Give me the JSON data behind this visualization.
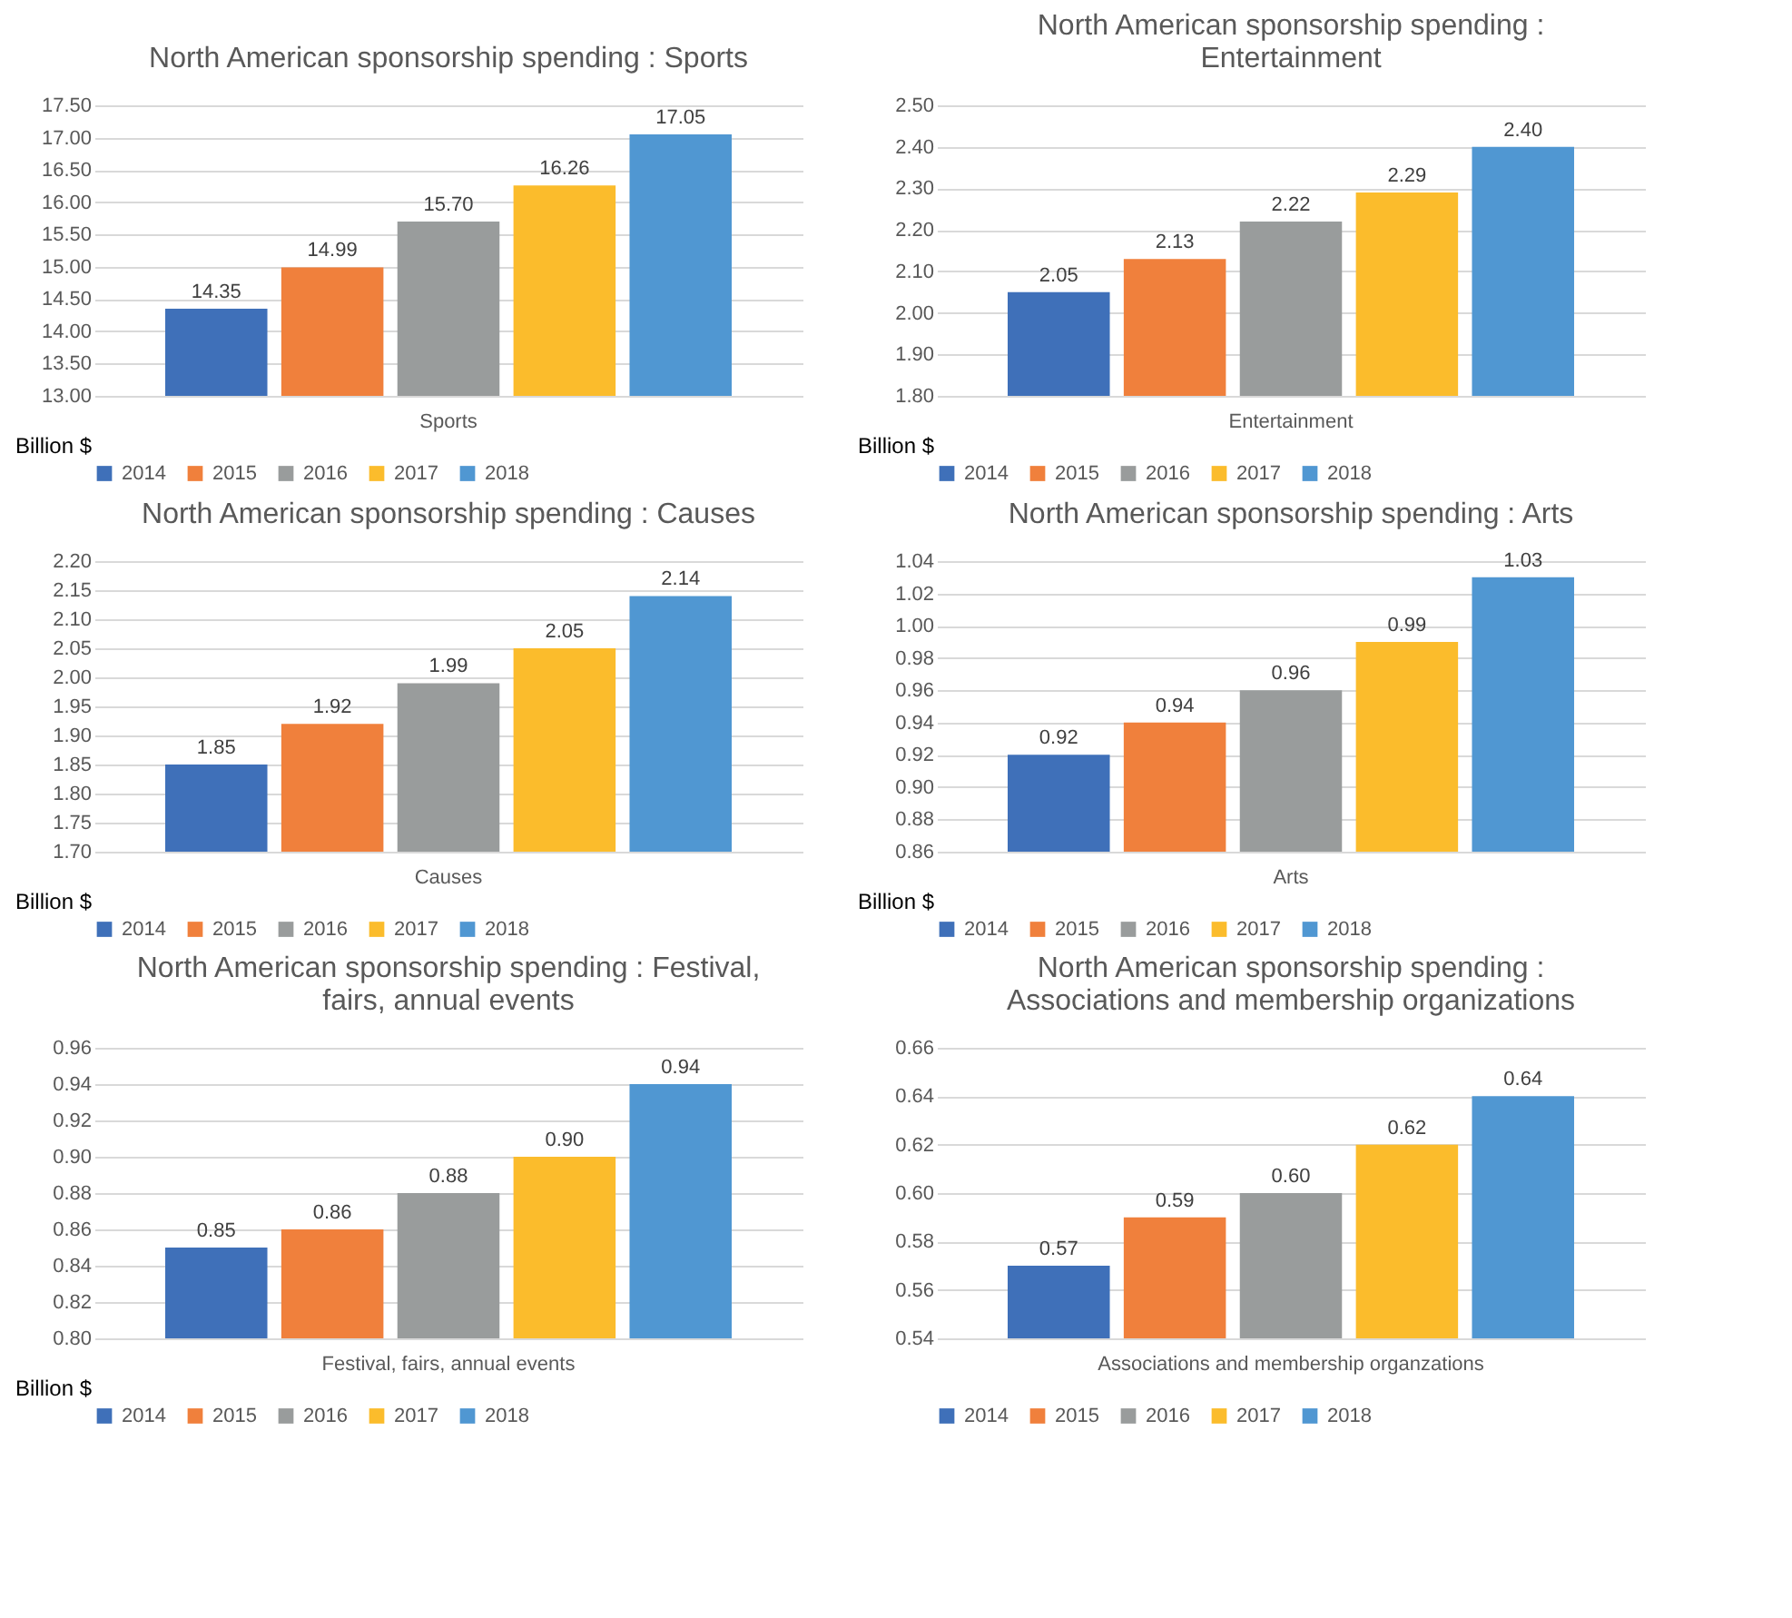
{
  "chart_data": [
    {
      "type": "bar",
      "title": "North American sponsorship spending : Sports",
      "categories": [
        "Sports"
      ],
      "ylabel": "Billion $",
      "grid": "y",
      "legend": "bottom",
      "ylim": [
        13,
        17.5
      ],
      "yticks": [
        {
          "value": 13,
          "label": "13.00"
        },
        {
          "value": 13.5,
          "label": "13.50"
        },
        {
          "value": 14,
          "label": "14.00"
        },
        {
          "value": 14.5,
          "label": "14.50"
        },
        {
          "value": 15,
          "label": "15.00"
        },
        {
          "value": 15.5,
          "label": "15.50"
        },
        {
          "value": 16,
          "label": "16.00"
        },
        {
          "value": 16.5,
          "label": "16.50"
        },
        {
          "value": 17,
          "label": "17.00"
        },
        {
          "value": 17.5,
          "label": "17.50"
        }
      ],
      "series": [
        {
          "name": "2014",
          "color": "#3f70b9",
          "values": [
            14.35
          ],
          "value_labels": [
            "14.35"
          ]
        },
        {
          "name": "2015",
          "color": "#f0803c",
          "values": [
            14.99
          ],
          "value_labels": [
            "14.99"
          ]
        },
        {
          "name": "2016",
          "color": "#999c9c",
          "values": [
            15.7
          ],
          "value_labels": [
            "15.70"
          ]
        },
        {
          "name": "2017",
          "color": "#fbbc2c",
          "values": [
            16.26
          ],
          "value_labels": [
            "16.26"
          ]
        },
        {
          "name": "2018",
          "color": "#5097d2",
          "values": [
            17.05
          ],
          "value_labels": [
            "17.05"
          ]
        }
      ]
    },
    {
      "type": "bar",
      "title": "North American sponsorship spending : Entertainment",
      "categories": [
        "Entertainment"
      ],
      "ylabel": "Billion $",
      "grid": "y",
      "legend": "bottom",
      "ylim": [
        1.8,
        2.5
      ],
      "yticks": [
        {
          "value": 1.8,
          "label": "1.80"
        },
        {
          "value": 1.9,
          "label": "1.90"
        },
        {
          "value": 2.0,
          "label": "2.00"
        },
        {
          "value": 2.1,
          "label": "2.10"
        },
        {
          "value": 2.2,
          "label": "2.20"
        },
        {
          "value": 2.3,
          "label": "2.30"
        },
        {
          "value": 2.4,
          "label": "2.40"
        },
        {
          "value": 2.5,
          "label": "2.50"
        }
      ],
      "series": [
        {
          "name": "2014",
          "color": "#3f70b9",
          "values": [
            2.05
          ],
          "value_labels": [
            "2.05"
          ]
        },
        {
          "name": "2015",
          "color": "#f0803c",
          "values": [
            2.13
          ],
          "value_labels": [
            "2.13"
          ]
        },
        {
          "name": "2016",
          "color": "#999c9c",
          "values": [
            2.22
          ],
          "value_labels": [
            "2.22"
          ]
        },
        {
          "name": "2017",
          "color": "#fbbc2c",
          "values": [
            2.29
          ],
          "value_labels": [
            "2.29"
          ]
        },
        {
          "name": "2018",
          "color": "#5097d2",
          "values": [
            2.4
          ],
          "value_labels": [
            "2.40"
          ]
        }
      ]
    },
    {
      "type": "bar",
      "title": "North American sponsorship spending : Causes",
      "categories": [
        "Causes"
      ],
      "ylabel": "Billion $",
      "grid": "y",
      "legend": "bottom",
      "ylim": [
        1.7,
        2.2
      ],
      "yticks": [
        {
          "value": 1.7,
          "label": "1.70"
        },
        {
          "value": 1.75,
          "label": "1.75"
        },
        {
          "value": 1.8,
          "label": "1.80"
        },
        {
          "value": 1.85,
          "label": "1.85"
        },
        {
          "value": 1.9,
          "label": "1.90"
        },
        {
          "value": 1.95,
          "label": "1.95"
        },
        {
          "value": 2.0,
          "label": "2.00"
        },
        {
          "value": 2.05,
          "label": "2.05"
        },
        {
          "value": 2.1,
          "label": "2.10"
        },
        {
          "value": 2.15,
          "label": "2.15"
        },
        {
          "value": 2.2,
          "label": "2.20"
        }
      ],
      "series": [
        {
          "name": "2014",
          "color": "#3f70b9",
          "values": [
            1.85
          ],
          "value_labels": [
            "1.85"
          ]
        },
        {
          "name": "2015",
          "color": "#f0803c",
          "values": [
            1.92
          ],
          "value_labels": [
            "1.92"
          ]
        },
        {
          "name": "2016",
          "color": "#999c9c",
          "values": [
            1.99
          ],
          "value_labels": [
            "1.99"
          ]
        },
        {
          "name": "2017",
          "color": "#fbbc2c",
          "values": [
            2.05
          ],
          "value_labels": [
            "2.05"
          ]
        },
        {
          "name": "2018",
          "color": "#5097d2",
          "values": [
            2.14
          ],
          "value_labels": [
            "2.14"
          ]
        }
      ]
    },
    {
      "type": "bar",
      "title": "North American sponsorship spending : Arts",
      "categories": [
        "Arts"
      ],
      "ylabel": "Billion $",
      "grid": "y",
      "legend": "bottom",
      "ylim": [
        0.86,
        1.04
      ],
      "yticks": [
        {
          "value": 0.86,
          "label": "0.86"
        },
        {
          "value": 0.88,
          "label": "0.88"
        },
        {
          "value": 0.9,
          "label": "0.90"
        },
        {
          "value": 0.92,
          "label": "0.92"
        },
        {
          "value": 0.94,
          "label": "0.94"
        },
        {
          "value": 0.96,
          "label": "0.96"
        },
        {
          "value": 0.98,
          "label": "0.98"
        },
        {
          "value": 1.0,
          "label": "1.00"
        },
        {
          "value": 1.02,
          "label": "1.02"
        },
        {
          "value": 1.04,
          "label": "1.04"
        }
      ],
      "series": [
        {
          "name": "2014",
          "color": "#3f70b9",
          "values": [
            0.92
          ],
          "value_labels": [
            "0.92"
          ]
        },
        {
          "name": "2015",
          "color": "#f0803c",
          "values": [
            0.94
          ],
          "value_labels": [
            "0.94"
          ]
        },
        {
          "name": "2016",
          "color": "#999c9c",
          "values": [
            0.96
          ],
          "value_labels": [
            "0.96"
          ]
        },
        {
          "name": "2017",
          "color": "#fbbc2c",
          "values": [
            0.99
          ],
          "value_labels": [
            "0.99"
          ]
        },
        {
          "name": "2018",
          "color": "#5097d2",
          "values": [
            1.03
          ],
          "value_labels": [
            "1.03"
          ]
        }
      ]
    },
    {
      "type": "bar",
      "title": "North American sponsorship spending : Festival, fairs, annual events",
      "categories": [
        "Festival, fairs, annual events"
      ],
      "ylabel": "Billion $",
      "grid": "y",
      "legend": "bottom",
      "ylim": [
        0.8,
        0.96
      ],
      "yticks": [
        {
          "value": 0.8,
          "label": "0.80"
        },
        {
          "value": 0.82,
          "label": "0.82"
        },
        {
          "value": 0.84,
          "label": "0.84"
        },
        {
          "value": 0.86,
          "label": "0.86"
        },
        {
          "value": 0.88,
          "label": "0.88"
        },
        {
          "value": 0.9,
          "label": "0.90"
        },
        {
          "value": 0.92,
          "label": "0.92"
        },
        {
          "value": 0.94,
          "label": "0.94"
        },
        {
          "value": 0.96,
          "label": "0.96"
        }
      ],
      "series": [
        {
          "name": "2014",
          "color": "#3f70b9",
          "values": [
            0.85
          ],
          "value_labels": [
            "0.85"
          ]
        },
        {
          "name": "2015",
          "color": "#f0803c",
          "values": [
            0.86
          ],
          "value_labels": [
            "0.86"
          ]
        },
        {
          "name": "2016",
          "color": "#999c9c",
          "values": [
            0.88
          ],
          "value_labels": [
            "0.88"
          ]
        },
        {
          "name": "2017",
          "color": "#fbbc2c",
          "values": [
            0.9
          ],
          "value_labels": [
            "0.90"
          ]
        },
        {
          "name": "2018",
          "color": "#5097d2",
          "values": [
            0.94
          ],
          "value_labels": [
            "0.94"
          ]
        }
      ]
    },
    {
      "type": "bar",
      "title": "North American sponsorship spending : Associations and membership organizations",
      "categories": [
        "Associations and membership organzations"
      ],
      "grid": "y",
      "legend": "bottom",
      "ylim": [
        0.54,
        0.66
      ],
      "yticks": [
        {
          "value": 0.54,
          "label": "0.54"
        },
        {
          "value": 0.56,
          "label": "0.56"
        },
        {
          "value": 0.58,
          "label": "0.58"
        },
        {
          "value": 0.6,
          "label": "0.60"
        },
        {
          "value": 0.62,
          "label": "0.62"
        },
        {
          "value": 0.64,
          "label": "0.64"
        },
        {
          "value": 0.66,
          "label": "0.66"
        }
      ],
      "series": [
        {
          "name": "2014",
          "color": "#3f70b9",
          "values": [
            0.57
          ],
          "value_labels": [
            "0.57"
          ]
        },
        {
          "name": "2015",
          "color": "#f0803c",
          "values": [
            0.59
          ],
          "value_labels": [
            "0.59"
          ]
        },
        {
          "name": "2016",
          "color": "#999c9c",
          "values": [
            0.6
          ],
          "value_labels": [
            "0.60"
          ]
        },
        {
          "name": "2017",
          "color": "#fbbc2c",
          "values": [
            0.62
          ],
          "value_labels": [
            "0.62"
          ]
        },
        {
          "name": "2018",
          "color": "#5097d2",
          "values": [
            0.64
          ],
          "value_labels": [
            "0.64"
          ]
        }
      ]
    }
  ]
}
